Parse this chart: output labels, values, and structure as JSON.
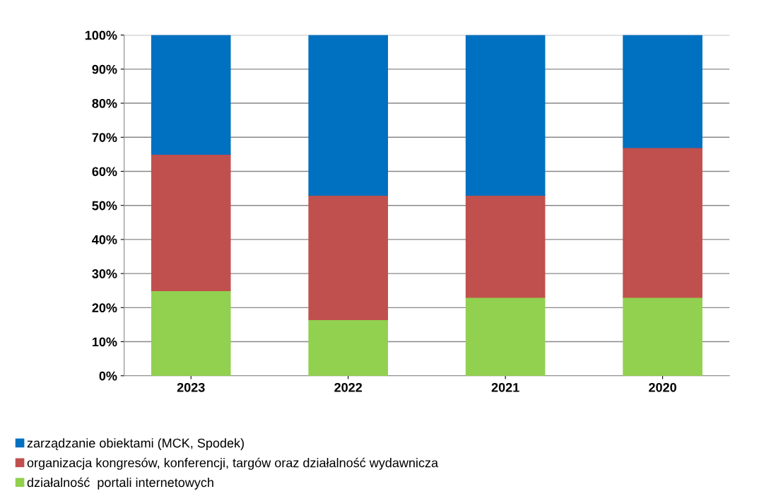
{
  "chart_data": {
    "type": "bar",
    "stacked": true,
    "categories": [
      "2023",
      "2022",
      "2021",
      "2020"
    ],
    "series": [
      {
        "name": "działalność  portali internetowych",
        "color": "#92d050",
        "values": [
          25,
          16.5,
          23,
          23
        ]
      },
      {
        "name": "organizacja kongresów, konferencji, targów oraz działalność wydawnicza",
        "color": "#c0504d",
        "values": [
          40,
          36.5,
          30,
          44
        ]
      },
      {
        "name": "zarządzanie obiektami (MCK, Spodek)",
        "color": "#0070c0",
        "values": [
          35,
          47,
          47,
          33
        ]
      }
    ],
    "ylim": [
      0,
      100
    ],
    "yticks": [
      {
        "value": 0,
        "label": "0%"
      },
      {
        "value": 10,
        "label": "10%"
      },
      {
        "value": 20,
        "label": "20%"
      },
      {
        "value": 30,
        "label": "30%"
      },
      {
        "value": 40,
        "label": "40%"
      },
      {
        "value": 50,
        "label": "50%"
      },
      {
        "value": 60,
        "label": "60%"
      },
      {
        "value": 70,
        "label": "70%"
      },
      {
        "value": 80,
        "label": "80%"
      },
      {
        "value": 90,
        "label": "90%"
      },
      {
        "value": 100,
        "label": "100%"
      }
    ],
    "grid": "y",
    "legend": "bottom left"
  }
}
